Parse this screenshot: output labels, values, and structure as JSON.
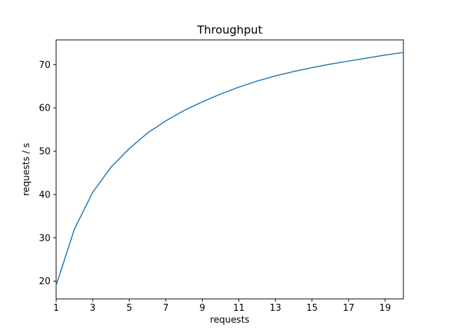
{
  "figure": {
    "background": "#ffffff",
    "frame_color": "#000000"
  },
  "chart_data": {
    "type": "line",
    "title": "Throughput",
    "xlabel": "requests",
    "ylabel": "requests / s",
    "x": [
      1,
      2,
      3,
      4,
      5,
      6,
      7,
      8,
      9,
      10,
      11,
      12,
      13,
      14,
      15,
      16,
      17,
      18,
      19,
      20
    ],
    "y": [
      19.0,
      32.0,
      40.5,
      46.3,
      50.6,
      54.2,
      57.0,
      59.4,
      61.4,
      63.2,
      64.8,
      66.2,
      67.4,
      68.4,
      69.3,
      70.1,
      70.8,
      71.5,
      72.2,
      72.8
    ],
    "x_ticks": [
      1,
      3,
      5,
      7,
      9,
      11,
      13,
      15,
      17,
      19
    ],
    "y_ticks": [
      20,
      30,
      40,
      50,
      60,
      70
    ],
    "xlim": [
      1,
      20
    ],
    "ylim": [
      15.9,
      75.7
    ],
    "line_color": "#1f77b4",
    "grid": false,
    "legend": null,
    "legend_position": "none"
  }
}
